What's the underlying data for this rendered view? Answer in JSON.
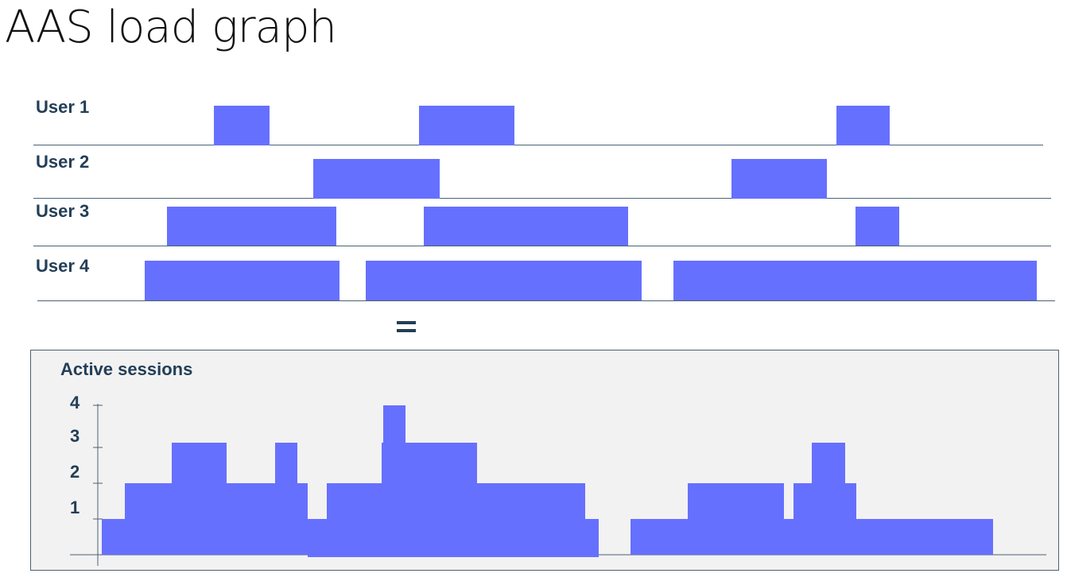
{
  "title": "AAS load graph",
  "users": [
    {
      "label": "User 1",
      "sessions": [
        [
          269,
          339
        ],
        [
          527,
          647
        ],
        [
          1052,
          1119
        ]
      ]
    },
    {
      "label": "User 2",
      "sessions": [
        [
          394,
          553
        ],
        [
          920,
          1040
        ]
      ]
    },
    {
      "label": "User 3",
      "sessions": [
        [
          210,
          423
        ],
        [
          533,
          790
        ],
        [
          1076,
          1131
        ]
      ]
    },
    {
      "label": "User 4",
      "sessions": [
        [
          182,
          427
        ],
        [
          460,
          807
        ],
        [
          847,
          1304
        ]
      ]
    }
  ],
  "equals_sign": "=",
  "chart_data": {
    "type": "area",
    "title": "Active sessions",
    "y_ticks": [
      "1",
      "2",
      "3",
      "4"
    ],
    "ylim": [
      0,
      4
    ],
    "steps": [
      {
        "x": [
          128,
          157
        ],
        "value": 1
      },
      {
        "x": [
          157,
          216
        ],
        "value": 2
      },
      {
        "x": [
          216,
          285
        ],
        "value": 3
      },
      {
        "x": [
          285,
          346
        ],
        "value": 2
      },
      {
        "x": [
          346,
          374
        ],
        "value": 3
      },
      {
        "x": [
          374,
          387
        ],
        "value": 2
      },
      {
        "x": [
          387,
          411
        ],
        "value": 1
      },
      {
        "x": [
          411,
          480
        ],
        "value": 2
      },
      {
        "x": [
          480,
          482
        ],
        "value": 3
      },
      {
        "x": [
          482,
          510
        ],
        "value": 4
      },
      {
        "x": [
          510,
          600
        ],
        "value": 3
      },
      {
        "x": [
          600,
          736
        ],
        "value": 2
      },
      {
        "x": [
          736,
          753
        ],
        "value": 1
      },
      {
        "x": [
          793,
          865
        ],
        "value": 1
      },
      {
        "x": [
          865,
          986
        ],
        "value": 2
      },
      {
        "x": [
          986,
          998
        ],
        "value": 1
      },
      {
        "x": [
          998,
          1021
        ],
        "value": 2
      },
      {
        "x": [
          1021,
          1063
        ],
        "value": 3
      },
      {
        "x": [
          1063,
          1077
        ],
        "value": 2
      },
      {
        "x": [
          1077,
          1249
        ],
        "value": 1
      }
    ]
  }
}
